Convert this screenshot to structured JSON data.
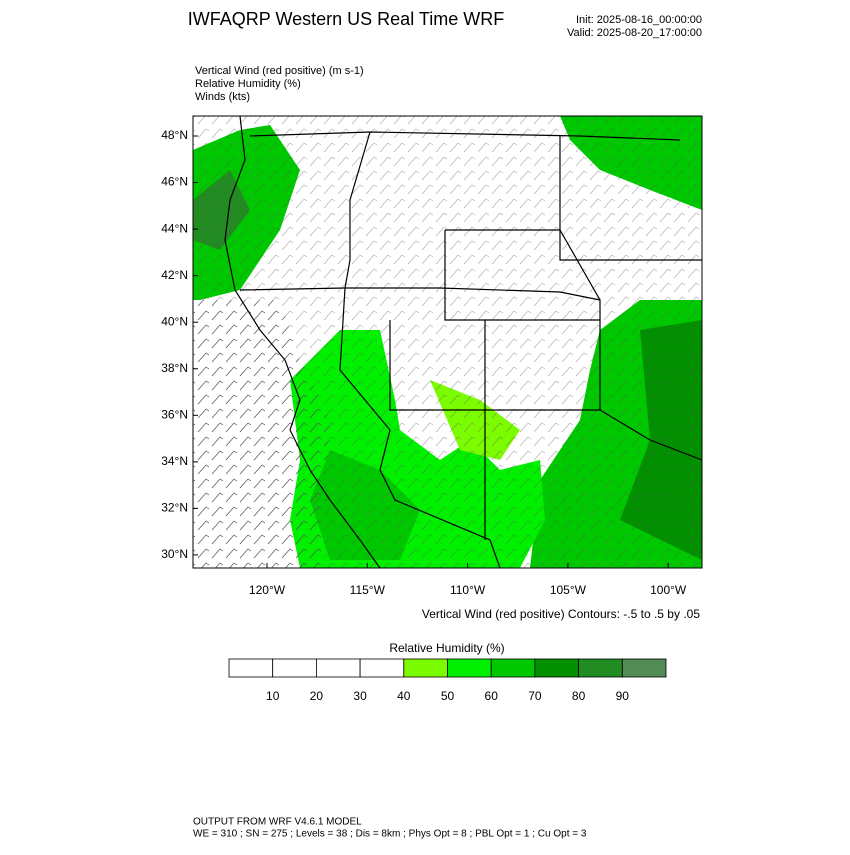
{
  "header": {
    "title": "IWFAQRP Western US Real Time WRF",
    "init": "Init: 2025-08-16_00:00:00",
    "valid": "Valid: 2025-08-20_17:00:00"
  },
  "fields": [
    "Vertical Wind (red positive)   (m s-1)",
    "Relative Humidity   (%)",
    "Winds   (kts)"
  ],
  "map": {
    "lat_labels": [
      "48°N",
      "46°N",
      "44°N",
      "42°N",
      "40°N",
      "38°N",
      "36°N",
      "34°N",
      "32°N",
      "30°N"
    ],
    "lon_labels": [
      "120°W",
      "115°W",
      "110°W",
      "105°W",
      "100°W"
    ],
    "contour_note": "Vertical Wind (red positive) Contours: -.5 to .5 by .05"
  },
  "colorbar": {
    "title": "Relative Humidity   (%)",
    "labels": [
      "10",
      "20",
      "30",
      "40",
      "50",
      "60",
      "70",
      "80",
      "90"
    ],
    "colors": [
      "#ffffff",
      "#ffffff",
      "#ffffff",
      "#ffffff",
      "#7cfc00",
      "#00f000",
      "#00c800",
      "#009000",
      "#228b22",
      "#548b54"
    ]
  },
  "footer": {
    "line1": "OUTPUT FROM WRF V4.6.1 MODEL",
    "line2": "WE = 310 ; SN = 275 ; Levels = 38 ; Dis = 8km ; Phys Opt = 8 ; PBL Opt = 1 ; Cu Opt = 3"
  }
}
